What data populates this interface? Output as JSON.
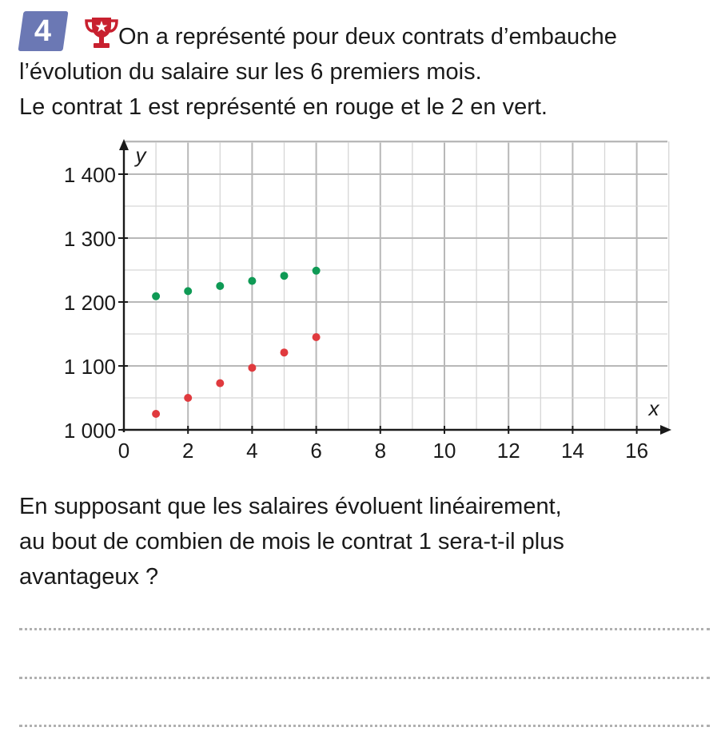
{
  "exercise": {
    "number": "4",
    "badge_color": "#6b78b4",
    "difficulty_icon": "trophy-icon",
    "intro_lines": [
      "On a représenté pour deux contrats d’embauche",
      "l’évolution du salaire sur les 6 premiers mois.",
      "Le contrat 1 est représenté en rouge et le 2 en vert."
    ],
    "question_lines": [
      "En supposant que les salaires évoluent linéairement,",
      "au bout de combien de mois le contrat 1 sera-t-il plus",
      "avantageux ?"
    ],
    "answer_lines": 3
  },
  "chart_data": {
    "type": "scatter",
    "title": "",
    "xlabel": "x",
    "ylabel": "y",
    "xlim": [
      0,
      17
    ],
    "ylim": [
      1000,
      1450
    ],
    "grid": true,
    "x_ticks": [
      0,
      2,
      4,
      6,
      8,
      10,
      12,
      14,
      16
    ],
    "x_tick_labels": [
      "0",
      "2",
      "4",
      "6",
      "8",
      "10",
      "12",
      "14",
      "16"
    ],
    "y_ticks": [
      1000,
      1100,
      1200,
      1300,
      1400
    ],
    "y_tick_labels": [
      "1 000",
      "1 100",
      "1 200",
      "1 300",
      "1 400"
    ],
    "series": [
      {
        "color": "#e03a3e",
        "points": [
          [
            1,
            1025
          ],
          [
            2,
            1050
          ],
          [
            3,
            1073
          ],
          [
            4,
            1097
          ],
          [
            5,
            1121
          ],
          [
            6,
            1145
          ]
        ]
      },
      {
        "color": "#0f9a55",
        "points": [
          [
            1,
            1209
          ],
          [
            2,
            1217
          ],
          [
            3,
            1225
          ],
          [
            4,
            1233
          ],
          [
            5,
            1241
          ],
          [
            6,
            1249
          ]
        ]
      }
    ]
  }
}
